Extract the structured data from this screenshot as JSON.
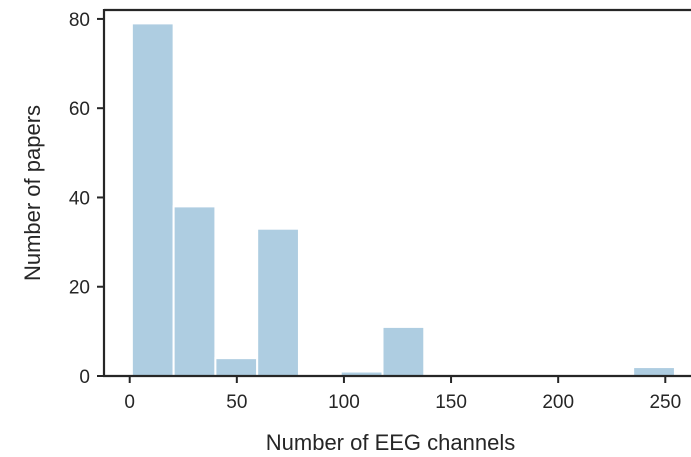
{
  "chart_data": {
    "type": "bar",
    "title": "",
    "xlabel": "Number of EEG channels",
    "ylabel": "Number of papers",
    "xlim": [
      -12,
      262
    ],
    "ylim": [
      0,
      82
    ],
    "xticks": [
      0,
      50,
      100,
      150,
      200,
      250
    ],
    "yticks": [
      0,
      20,
      40,
      60,
      80
    ],
    "bar_color": "#aecde1",
    "bins": [
      {
        "x0": 1,
        "x1": 20.5,
        "count": 79
      },
      {
        "x0": 20.5,
        "x1": 40,
        "count": 38
      },
      {
        "x0": 40,
        "x1": 59.5,
        "count": 4
      },
      {
        "x0": 59.5,
        "x1": 79,
        "count": 33
      },
      {
        "x0": 79,
        "x1": 98.5,
        "count": 0
      },
      {
        "x0": 98.5,
        "x1": 118,
        "count": 1
      },
      {
        "x0": 118,
        "x1": 137.5,
        "count": 11
      },
      {
        "x0": 137.5,
        "x1": 157,
        "count": 0
      },
      {
        "x0": 157,
        "x1": 176.5,
        "count": 0
      },
      {
        "x0": 176.5,
        "x1": 196,
        "count": 0
      },
      {
        "x0": 196,
        "x1": 215.5,
        "count": 0
      },
      {
        "x0": 215.5,
        "x1": 235,
        "count": 0
      },
      {
        "x0": 235,
        "x1": 254.5,
        "count": 2
      }
    ],
    "grid": false,
    "legend": "none"
  }
}
